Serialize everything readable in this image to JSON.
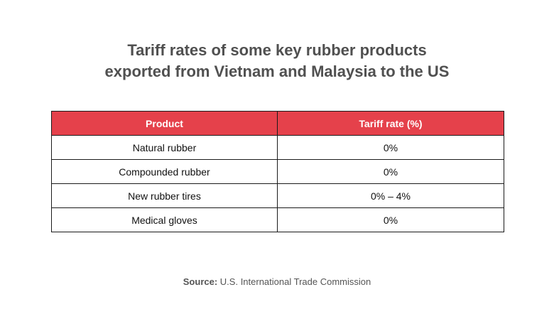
{
  "title": {
    "line1": "Tariff rates of some key rubber products",
    "line2": "exported from Vietnam and Malaysia to the US"
  },
  "table": {
    "headers": [
      "Product",
      "Tariff rate (%)"
    ],
    "rows": [
      [
        "Natural rubber",
        "0%"
      ],
      [
        "Compounded rubber",
        "0%"
      ],
      [
        "New rubber tires",
        "0% – 4%"
      ],
      [
        "Medical gloves",
        "0%"
      ]
    ],
    "header_color": "#e5414b"
  },
  "source": {
    "label": "Source:",
    "text": "U.S. International Trade Commission"
  }
}
